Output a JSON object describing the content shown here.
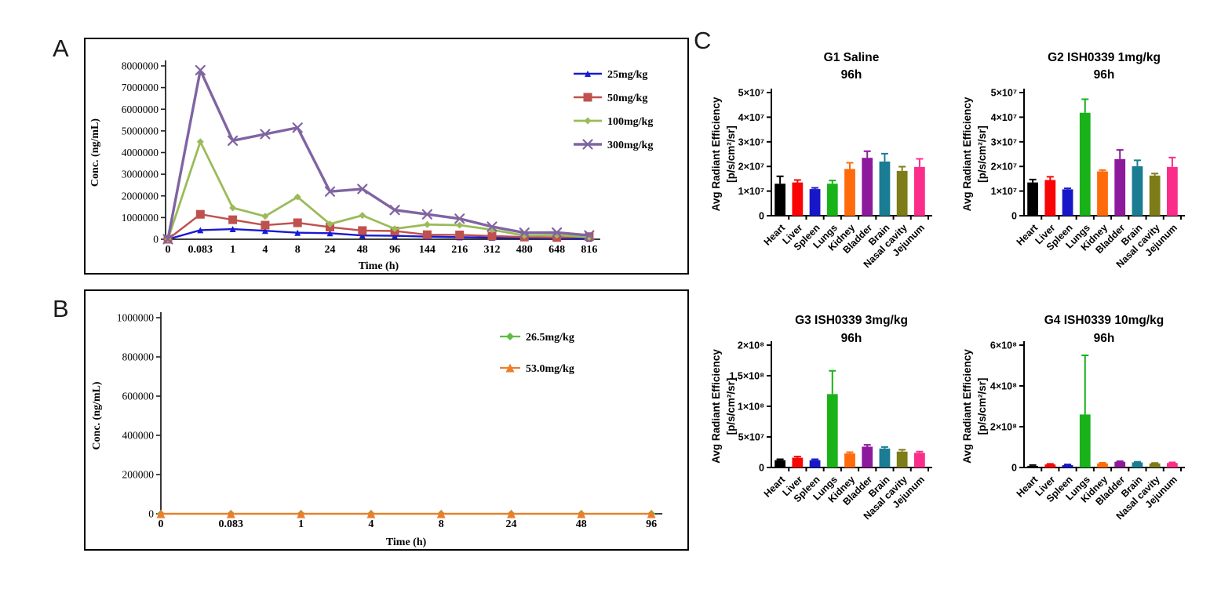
{
  "panels": {
    "a": {
      "label": "A"
    },
    "b": {
      "label": "B"
    },
    "c": {
      "label": "C"
    }
  },
  "chart_data": [
    {
      "id": "panel_a",
      "type": "line",
      "title": "",
      "xlabel": "Time (h)",
      "ylabel": "Conc. (ng/mL)",
      "categories": [
        "0",
        "0.083",
        "1",
        "4",
        "8",
        "24",
        "48",
        "96",
        "144",
        "216",
        "312",
        "480",
        "648",
        "816"
      ],
      "ylim": [
        0,
        8000000
      ],
      "ytick_values": [
        0,
        1000000,
        2000000,
        3000000,
        4000000,
        5000000,
        6000000,
        7000000,
        8000000
      ],
      "ytick_labels": [
        "0",
        "1000000",
        "2000000",
        "3000000",
        "4000000",
        "5000000",
        "6000000",
        "7000000",
        "8000000"
      ],
      "grid": false,
      "legend_position": "top-right",
      "series": [
        {
          "name": "25mg/kg",
          "color": "#1a1ad1",
          "marker": "triangle",
          "values": [
            0,
            420000,
            470000,
            390000,
            300000,
            280000,
            175000,
            160000,
            120000,
            95000,
            75000,
            55000,
            45000,
            35000
          ]
        },
        {
          "name": "50mg/kg",
          "color": "#c0504d",
          "marker": "square",
          "values": [
            0,
            1150000,
            900000,
            650000,
            760000,
            560000,
            400000,
            380000,
            210000,
            200000,
            150000,
            100000,
            80000,
            120000
          ]
        },
        {
          "name": "100mg/kg",
          "color": "#9bbb59",
          "marker": "diamond",
          "values": [
            0,
            4500000,
            1450000,
            1060000,
            1950000,
            700000,
            1100000,
            480000,
            680000,
            650000,
            440000,
            170000,
            190000,
            90000
          ]
        },
        {
          "name": "300mg/kg",
          "color": "#8064a2",
          "marker": "x",
          "values": [
            0,
            7800000,
            4550000,
            4850000,
            5150000,
            2200000,
            2320000,
            1350000,
            1150000,
            950000,
            580000,
            300000,
            310000,
            180000
          ]
        }
      ]
    },
    {
      "id": "panel_b",
      "type": "line",
      "title": "",
      "xlabel": "Time (h)",
      "ylabel": "Conc. (ng/mL)",
      "categories": [
        "0",
        "0.083",
        "1",
        "4",
        "8",
        "24",
        "48",
        "96"
      ],
      "ylim": [
        0,
        1000000
      ],
      "ytick_values": [
        0,
        200000,
        400000,
        600000,
        800000,
        1000000
      ],
      "ytick_labels": [
        "0",
        "200000",
        "400000",
        "600000",
        "800000",
        "1000000"
      ],
      "grid": false,
      "legend_position": "top-right",
      "series": [
        {
          "name": "26.5mg/kg",
          "color": "#5fba46",
          "marker": "diamond",
          "values": [
            0,
            0,
            0,
            0,
            0,
            0,
            0,
            0
          ]
        },
        {
          "name": "53.0mg/kg",
          "color": "#ee7d2a",
          "marker": "triangle",
          "values": [
            0,
            0,
            0,
            0,
            0,
            0,
            0,
            0
          ]
        }
      ]
    },
    {
      "id": "c_g1",
      "type": "bar",
      "title_line1": "G1 Saline",
      "title_line2": "96h",
      "ylabel_line1": "Avg Radiant Efficiency",
      "ylabel_line2": "[p/s/cm²/sr]",
      "categories": [
        "Heart",
        "Liver",
        "Spleen",
        "Lungs",
        "Kidney",
        "Bladder",
        "Brain",
        "Nasal cavity",
        "Jejunum"
      ],
      "ytick_values": [
        0,
        10000000,
        20000000,
        30000000,
        40000000,
        50000000
      ],
      "ytick_labels": [
        "0",
        "1×10⁷",
        "2×10⁷",
        "3×10⁷",
        "4×10⁷",
        "5×10⁷"
      ],
      "colors": [
        "#000000",
        "#fa0505",
        "#1717c9",
        "#19b219",
        "#ff6b0c",
        "#8d1a9c",
        "#1a7d93",
        "#7e7c17",
        "#fb2d8a"
      ],
      "values": [
        13000000,
        13500000,
        10800000,
        13000000,
        19000000,
        23500000,
        22000000,
        18200000,
        19800000
      ],
      "errors": [
        3000000,
        1000000,
        500000,
        1300000,
        2500000,
        2700000,
        3200000,
        1700000,
        3300000
      ]
    },
    {
      "id": "c_g2",
      "type": "bar",
      "title_line1": "G2 ISH0339 1mg/kg",
      "title_line2": "96h",
      "ylabel_line1": "Avg Radiant Efficiency",
      "ylabel_line2": "[p/s/cm²/sr]",
      "categories": [
        "Heart",
        "Liver",
        "Spleen",
        "Lungs",
        "Kidney",
        "Bladder",
        "Brain",
        "Nasal cavity",
        "Jejunum"
      ],
      "ytick_values": [
        0,
        10000000,
        20000000,
        30000000,
        40000000,
        50000000
      ],
      "ytick_labels": [
        "0",
        "1×10⁷",
        "2×10⁷",
        "3×10⁷",
        "4×10⁷",
        "5×10⁷"
      ],
      "colors": [
        "#000000",
        "#fa0505",
        "#1717c9",
        "#19b219",
        "#ff6b0c",
        "#8d1a9c",
        "#1a7d93",
        "#7e7c17",
        "#fb2d8a"
      ],
      "values": [
        13500000,
        14500000,
        10700000,
        41800000,
        18000000,
        23000000,
        20100000,
        16300000,
        19800000
      ],
      "errors": [
        1200000,
        1300000,
        400000,
        5500000,
        500000,
        3700000,
        2400000,
        800000,
        3800000
      ]
    },
    {
      "id": "c_g3",
      "type": "bar",
      "title_line1": "G3 ISH0339 3mg/kg",
      "title_line2": "96h",
      "ylabel_line1": "Avg Radiant Efficiency",
      "ylabel_line2": "[p/s/cm²/sr]",
      "categories": [
        "Heart",
        "Liver",
        "Spleen",
        "Lungs",
        "Kidney",
        "Bladder",
        "Brain",
        "Nasal cavity",
        "Jejunum"
      ],
      "ytick_values": [
        0,
        50000000,
        100000000,
        150000000,
        200000000
      ],
      "ytick_labels": [
        "0",
        "5×10⁷",
        "1×10⁸",
        "1.5×10⁸",
        "2×10⁸"
      ],
      "colors": [
        "#000000",
        "#fa0505",
        "#1717c9",
        "#19b219",
        "#ff6b0c",
        "#8d1a9c",
        "#1a7d93",
        "#7e7c17",
        "#fb2d8a"
      ],
      "values": [
        12000000,
        16000000,
        12000000,
        120000000,
        23000000,
        34000000,
        31000000,
        26000000,
        24000000
      ],
      "errors": [
        1500000,
        2000000,
        1500000,
        38000000,
        2000000,
        3000000,
        2500000,
        3000000,
        2000000
      ]
    },
    {
      "id": "c_g4",
      "type": "bar",
      "title_line1": "G4 ISH0339 10mg/kg",
      "title_line2": "96h",
      "ylabel_line1": "Avg Radiant Efficiency",
      "ylabel_line2": "[p/s/cm²/sr]",
      "categories": [
        "Heart",
        "Liver",
        "Spleen",
        "Lungs",
        "Kidney",
        "Bladder",
        "Brain",
        "Nasal cavity",
        "Jejunum"
      ],
      "ytick_values": [
        0,
        200000000,
        400000000,
        600000000
      ],
      "ytick_labels": [
        "0",
        "2×10⁸",
        "4×10⁸",
        "6×10⁸"
      ],
      "colors": [
        "#000000",
        "#fa0505",
        "#1717c9",
        "#19b219",
        "#ff6b0c",
        "#8d1a9c",
        "#1a7d93",
        "#7e7c17",
        "#fb2d8a"
      ],
      "values": [
        8000000,
        15000000,
        12000000,
        260000000,
        20000000,
        28000000,
        25000000,
        20000000,
        22000000
      ],
      "errors": [
        4000000,
        3000000,
        3000000,
        290000000,
        3000000,
        3000000,
        3000000,
        2000000,
        3000000
      ]
    }
  ]
}
